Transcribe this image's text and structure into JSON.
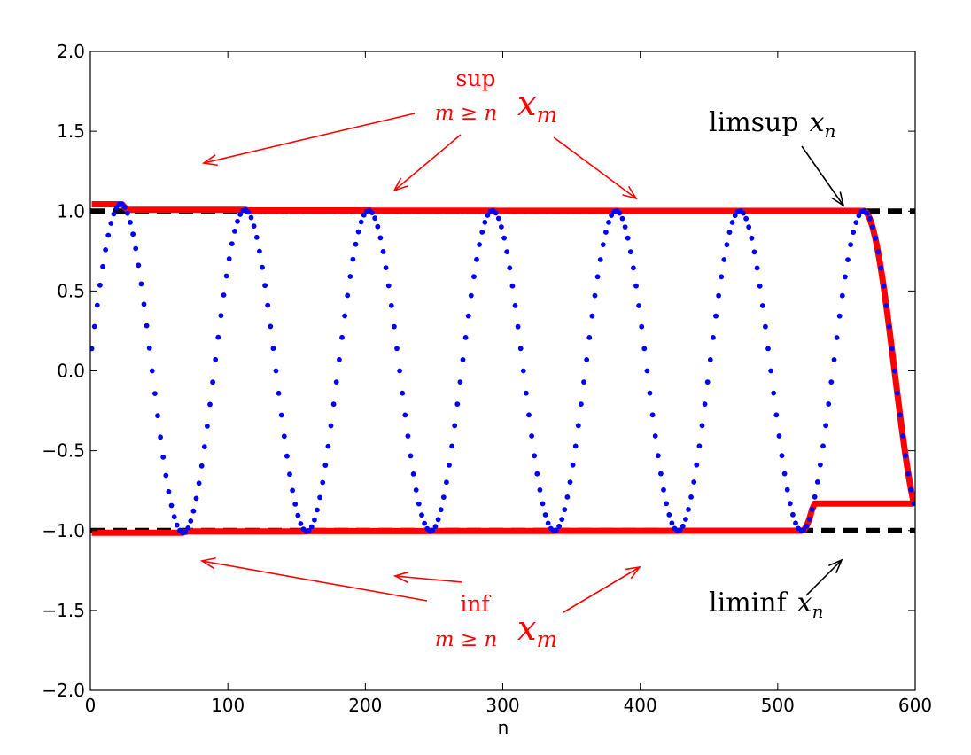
{
  "chart_data": {
    "type": "scatter",
    "title": "",
    "xlabel": "n",
    "ylabel": "",
    "xlim": [
      0,
      600
    ],
    "ylim": [
      -2.0,
      2.0
    ],
    "x_ticks": [
      0,
      100,
      200,
      300,
      400,
      500,
      600
    ],
    "y_ticks": [
      2.0,
      1.5,
      1.0,
      0.5,
      0.0,
      -0.5,
      -1.0,
      -1.5,
      -2.0
    ],
    "y_tick_labels": [
      "2.0",
      "1.5",
      "1.0",
      "0.5",
      "0.0",
      "−0.5",
      "−1.0",
      "−1.5",
      "−2.0"
    ],
    "grid": false,
    "sequence": {
      "description": "x_n = (1 + 1/n) * sin(2*pi*n/90), sampled every 2 steps",
      "n_start": 1,
      "n_end": 600,
      "step": 2,
      "period": 90,
      "color": "#0000ff"
    },
    "series": [
      {
        "key": "x_n",
        "color": "#0000ff"
      },
      {
        "key": "sup_m_ge_n_x_m",
        "color": "#ff0000"
      },
      {
        "key": "inf_m_ge_n_x_m",
        "color": "#ff0000"
      },
      {
        "key": "limsup",
        "value": 1.0,
        "color": "#000000",
        "style": "dashed"
      },
      {
        "key": "liminf",
        "value": -1.0,
        "color": "#000000",
        "style": "dashed"
      }
    ],
    "annotations": {
      "sup": {
        "op": "sup",
        "sub": "m ≥ n",
        "expr": "x",
        "expr_sub": "m",
        "color": "#ff0000"
      },
      "inf": {
        "op": "inf",
        "sub": "m ≥ n",
        "expr": "x",
        "expr_sub": "m",
        "color": "#ff0000"
      },
      "limsup": {
        "op": "limsup",
        "expr": "x",
        "expr_sub": "n",
        "color": "#000000"
      },
      "liminf": {
        "op": "liminf",
        "expr": "x",
        "expr_sub": "n",
        "color": "#000000"
      }
    }
  }
}
